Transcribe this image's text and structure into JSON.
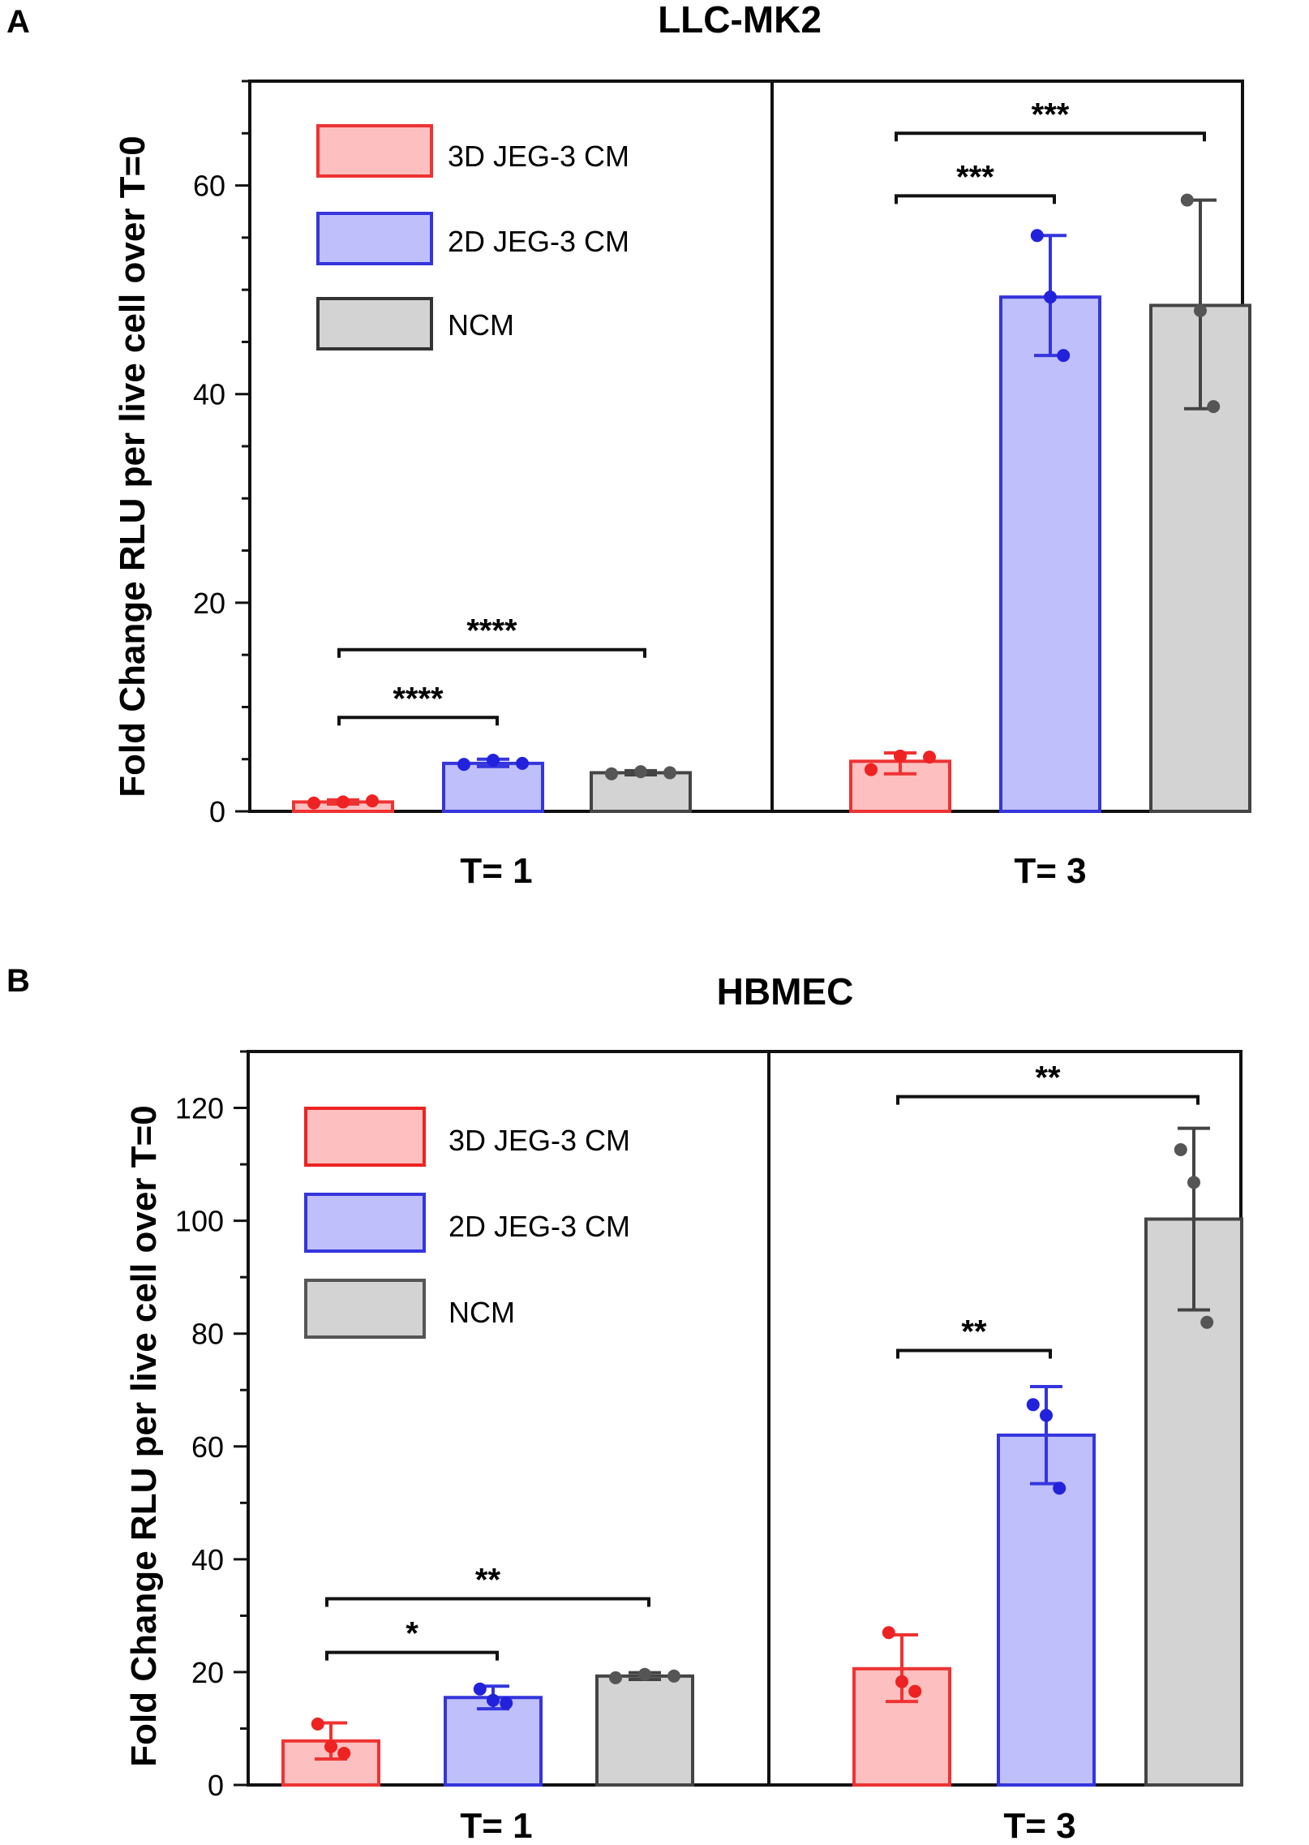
{
  "chart_data": [
    {
      "panel_label": "A",
      "type": "bar",
      "title": "LLC-MK2",
      "ylabel": "Fold Change RLU per live cell over T=0",
      "ylim": [
        0,
        70
      ],
      "yticks": [
        "0",
        "20",
        "40",
        "60"
      ],
      "groups": [
        "T= 1",
        "T= 3"
      ],
      "legend": [
        "3D JEG-3 CM",
        "2D JEG-3 CM",
        "NCM"
      ],
      "series": [
        {
          "name": "3D JEG-3 CM",
          "values": [
            0.9,
            4.8
          ],
          "err_low": [
            0.7,
            3.6
          ],
          "err_high": [
            1.1,
            5.6
          ],
          "points": [
            [
              0.8,
              0.9,
              1.0
            ],
            [
              4.0,
              5.3,
              5.2
            ]
          ]
        },
        {
          "name": "2D JEG-3 CM",
          "values": [
            4.6,
            49.3
          ],
          "err_low": [
            4.3,
            43.7
          ],
          "err_high": [
            5.0,
            55.2
          ],
          "points": [
            [
              4.5,
              4.9,
              4.6
            ],
            [
              55.2,
              49.3,
              43.7
            ]
          ]
        },
        {
          "name": "NCM",
          "values": [
            3.7,
            48.5
          ],
          "err_low": [
            3.5,
            38.6
          ],
          "err_high": [
            3.9,
            58.6
          ],
          "points": [
            [
              3.6,
              3.8,
              3.7
            ],
            [
              58.6,
              48.0,
              38.8
            ]
          ]
        }
      ],
      "significance": [
        {
          "group": "T= 1",
          "from": 0,
          "to": 1,
          "label": "****",
          "y": 9
        },
        {
          "group": "T= 1",
          "from": 0,
          "to": 2,
          "label": "****",
          "y": 15.5
        },
        {
          "group": "T= 3",
          "from": 0,
          "to": 1,
          "label": "***",
          "y": 59
        },
        {
          "group": "T= 3",
          "from": 0,
          "to": 2,
          "label": "***",
          "y": 65
        }
      ]
    },
    {
      "panel_label": "B",
      "type": "bar",
      "title": "HBMEC",
      "ylabel": "Fold Change RLU per live cell over T=0",
      "ylim": [
        0,
        130
      ],
      "yticks": [
        "0",
        "20",
        "40",
        "60",
        "80",
        "100",
        "120"
      ],
      "groups": [
        "T= 1",
        "T= 3"
      ],
      "legend": [
        "3D JEG-3 CM",
        "2D JEG-3 CM",
        "NCM"
      ],
      "series": [
        {
          "name": "3D JEG-3 CM",
          "values": [
            7.8,
            20.6
          ],
          "err_low": [
            4.6,
            14.8
          ],
          "err_high": [
            11.0,
            26.6
          ],
          "points": [
            [
              10.8,
              6.8,
              5.6
            ],
            [
              27.0,
              18.3,
              16.6
            ]
          ]
        },
        {
          "name": "2D JEG-3 CM",
          "values": [
            15.5,
            62.0
          ],
          "err_low": [
            13.5,
            53.4
          ],
          "err_high": [
            17.5,
            70.6
          ],
          "points": [
            [
              17.0,
              15.0,
              14.5
            ],
            [
              67.4,
              65.5,
              52.6
            ]
          ]
        },
        {
          "name": "NCM",
          "values": [
            19.3,
            100.3
          ],
          "err_low": [
            18.7,
            84.2
          ],
          "err_high": [
            19.9,
            116.4
          ],
          "points": [
            [
              19.0,
              19.6,
              19.3
            ],
            [
              112.6,
              106.8,
              82.0
            ]
          ]
        }
      ],
      "significance": [
        {
          "group": "T= 1",
          "from": 0,
          "to": 1,
          "label": "*",
          "y": 23.5
        },
        {
          "group": "T= 1",
          "from": 0,
          "to": 2,
          "label": "**",
          "y": 33
        },
        {
          "group": "T= 3",
          "from": 0,
          "to": 1,
          "label": "**",
          "y": 77
        },
        {
          "group": "T= 3",
          "from": 0,
          "to": 2,
          "label": "**",
          "y": 122
        }
      ]
    }
  ],
  "colors": {
    "fill": [
      "#fdbfbf",
      "#bfbffb",
      "#d3d3d3"
    ],
    "edge": [
      "#ee3333",
      "#3535dd",
      "#444444"
    ],
    "dot": [
      "#ee2222",
      "#2222dd",
      "#555555"
    ]
  }
}
